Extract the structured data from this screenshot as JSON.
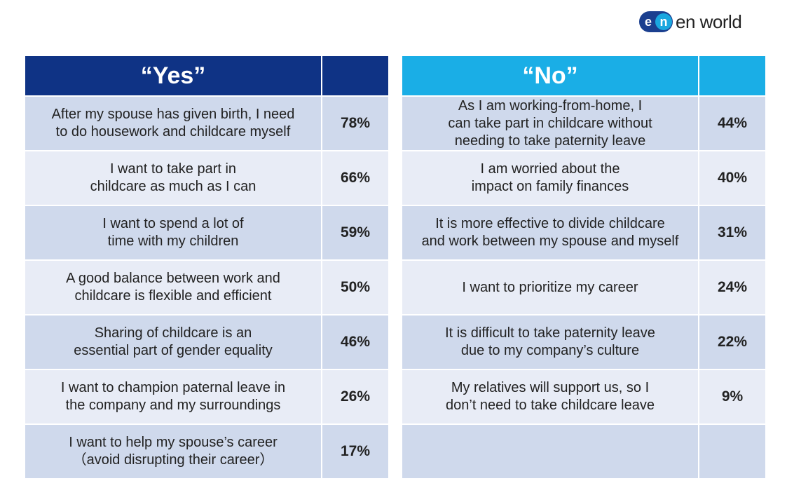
{
  "brand": {
    "mark_left": "e",
    "mark_right": "n",
    "name": "en world"
  },
  "yes": {
    "header": "“Yes”",
    "rows": [
      {
        "label": "After my spouse has given birth, I need\nto do housework and childcare myself",
        "pct": "78%"
      },
      {
        "label": "I want to take part in\nchildcare as much as I can",
        "pct": "66%"
      },
      {
        "label": "I want to spend a lot of\ntime with my children",
        "pct": "59%"
      },
      {
        "label": "A good balance between work and\nchildcare is flexible and efficient",
        "pct": "50%"
      },
      {
        "label": "Sharing of childcare is an\nessential part of gender equality",
        "pct": "46%"
      },
      {
        "label": "I want to champion paternal leave in\nthe company and my surroundings",
        "pct": "26%"
      },
      {
        "label": "I want to help my spouse’s career\n（avoid disrupting their career）",
        "pct": "17%"
      }
    ]
  },
  "no": {
    "header": "“No”",
    "rows": [
      {
        "label": "As I am working-from-home, I\ncan take part in childcare without\nneeding to take paternity leave",
        "pct": "44%"
      },
      {
        "label": "I am worried about the\nimpact on family finances",
        "pct": "40%"
      },
      {
        "label": "It is more effective to divide childcare\nand work between my spouse and myself",
        "pct": "31%"
      },
      {
        "label": "I want to prioritize my career",
        "pct": "24%"
      },
      {
        "label": "It is difficult to take paternity leave\ndue to my company’s culture",
        "pct": "22%"
      },
      {
        "label": "My relatives will support us, so I\ndon’t need to take childcare leave",
        "pct": "9%"
      },
      {
        "label": "",
        "pct": ""
      }
    ]
  },
  "colors": {
    "yes_header": "#0f3385",
    "no_header": "#1aaee6",
    "row_dark": "#cfd9ec",
    "row_light": "#e8ecf6"
  }
}
